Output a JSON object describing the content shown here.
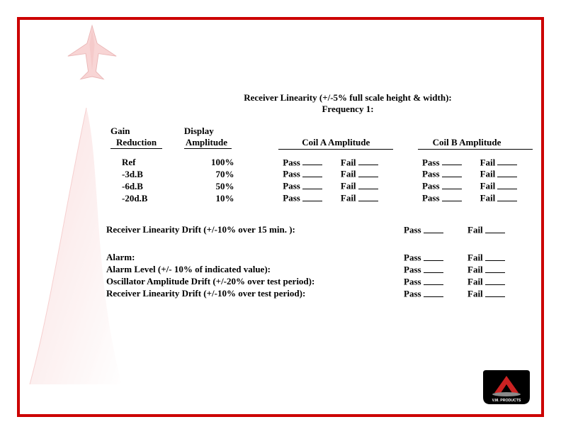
{
  "colors": {
    "border": "#cc0000",
    "jet_fill": "#f5b9b9",
    "jet_stroke": "#e68a8a",
    "logo_bg": "#000000",
    "logo_tri": "#cc2222",
    "logo_floor": "#888888",
    "logo_text": "#ffffff"
  },
  "title": {
    "line1": "Receiver Linearity (+/-5% full scale height & width):",
    "line2": "Frequency 1:"
  },
  "headers": {
    "gain_l1": "Gain",
    "gain_l2": "Reduction",
    "disp_l1": "Display",
    "disp_l2": "Amplitude",
    "coil_a": "Coil A Amplitude",
    "coil_b": "Coil B Amplitude"
  },
  "rows": [
    {
      "gain": "Ref",
      "disp": "100%"
    },
    {
      "gain": "-3d.B",
      "disp": "70%"
    },
    {
      "gain": "-6d.B",
      "disp": "50%"
    },
    {
      "gain": "-20d.B",
      "disp": "10%"
    }
  ],
  "pass_label": "Pass",
  "fail_label": "Fail",
  "drift_line": "Receiver Linearity Drift (+/-10% over 15 min. ):",
  "checks": [
    "Alarm:",
    "Alarm Level (+/- 10% of indicated value):",
    "Oscillator Amplitude Drift (+/-20% over test period):",
    "Receiver Linearity Drift (+/-10% over test period):"
  ],
  "logo_text": "V.M. PRODUCTS"
}
